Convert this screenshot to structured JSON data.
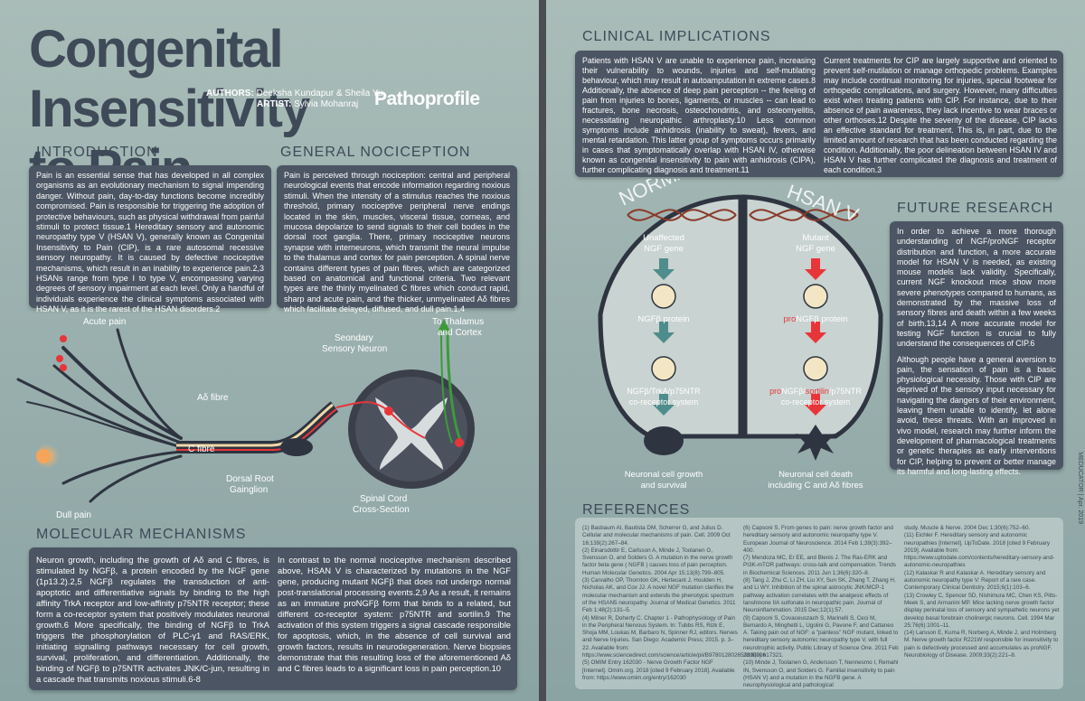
{
  "title_line1": "Congenital Insensitivity",
  "title_line2": "to Pain",
  "authors_label": "AUTHORS:",
  "authors": "Deeksha Kundapur & Sheila Yu",
  "artist_label": "ARTIST:",
  "artist": "Sylvia Mohanraj",
  "brand": "Pathoprofile",
  "introduction": {
    "heading": "INTRODUCTION",
    "text": "Pain is an essential sense that has developed in all complex organisms as an evolutionary mechanism to signal impending danger. Without pain, day-to-day functions become incredibly compromised. Pain is responsible for triggering the adoption of protective behaviours, such as physical withdrawal from painful stimuli to protect tissue.1 Hereditary sensory and autonomic neuropathy type V (HSAN V), generally known as Congenital Insensitivity to Pain (CIP), is a rare autosomal recessive sensory neuropathy. It is caused by defective nociceptive mechanisms, which result in an inability to experience pain.2,3 HSANs range from type I to type V, encompassing varying degrees of sensory impairment at each level. Only a handful of individuals experience the clinical symptoms associated with HSAN V, as it is the rarest of the HSAN disorders.2"
  },
  "nociception": {
    "heading": "GENERAL NOCICEPTION",
    "text": "Pain is perceived through nociception: central and peripheral neurological events that encode information regarding noxious stimuli. When the intensity of a stimulus reaches the noxious threshold, primary nociceptive peripheral nerve endings located in the skin, muscles, visceral tissue, corneas, and mucosa depolarize to send signals to their cell bodies in the dorsal root ganglia. There, primary nociceptive neurons synapse with interneurons, which transmit the neural impulse to the thalamus and cortex for pain perception. A spinal nerve contains different types of pain fibres, which are categorized based on anatomical and functional criteria. Two relevant types are the thinly myelinated C fibres which conduct rapid, sharp and acute pain, and the thicker, unmyelinated Aδ fibres which facilitate delayed, diffused, and dull pain.1,4"
  },
  "figure_left": {
    "acute_pain": "Acute pain",
    "dull_pain": "Dull pain",
    "a_delta": "Aδ fibre",
    "c_fibre": "C fibre",
    "drg_1": "Dorsal Root",
    "drg_2": "Gainglion",
    "secondary_1": "Seondary",
    "secondary_2": "Sensory Neuron",
    "thalamus_1": "To Thalamus",
    "thalamus_2": "and Cortex",
    "spinal_1": "Spinal Cord",
    "spinal_2": "Cross-Section"
  },
  "molecular": {
    "heading": "MOLECULAR MECHANISMS",
    "text1": "Neuron growth, including the growth of Aδ and C fibres, is stimulated by NGFβ, a protein encoded by the NGF gene (1p13.2).2,5 NGFβ regulates the transduction of anti-apoptotic and differentiative signals by binding to the high affinity TrkA receptor and low-affinity p75NTR receptor; these form a co-receptor system that positively modulates neuronal growth.6 More specifically, the binding of NGFβ to TrkA triggers the phosphorylation of PLC-γ1 and RAS/ERK, initiating signalling pathways necessary for cell growth, survival, proliferation, and differentiation. Additionally, the binding of NGFβ to p75NTR activates JNK/C-jun, resulting in a cascade that transmits noxious stimuli.6-8",
    "text2": "In contrast to the normal nociceptive mechanism described above, HSAN V is characterized by mutations in the NGF gene, producing mutant NGFβ that does not undergo normal post-translational processing events.2,9 As a result, it remains as an immature proNGFβ form that binds to a related, but different co-receptor system: p75NTR and sortilin.9 The activation of this system triggers a signal cascade responsible for apoptosis, which, in the absence of cell survival and growth factors, results in neurodegeneration. Nerve biopsies demonstrate that this resulting loss of the aforementioned Aδ and C fibres leads to a significant loss in pain perception.10"
  },
  "clinical": {
    "heading": "CLINICAL IMPLICATIONS",
    "text1": "Patients with HSAN V are unable to experience pain, increasing their vulnerability to wounds, injuries and self-mutilating behaviour, which may result in autoamputation in extreme cases.8 Additionally, the absence of deep pain perception -- the feeling of pain from injuries to bones, ligaments, or muscles -- can lead to fractures, bone necrosis, osteochondritis, and osteomyelitis, necessitating neuropathic arthroplasty.10 Less common symptoms include anhidrosis (inability to sweat), fevers, and mental retardation. This latter group of symptoms occurs primarily in cases that symptomatically overlap with HSAN IV, otherwise known as congenital insensitivity to pain with anhidrosis (CIPA), further complicating diagnosis and treatment.11",
    "text2": "Current treatments for CIP are largely supportive and oriented to prevent self-mutilation or manage orthopedic problems. Examples may include continual monitoring for injuries, special footwear for orthopedic complications, and surgery. However, many difficulties exist when treating patients with CIP. For instance, due to their absence of pain awareness, they lack incentive to wear braces or other orthoses.12 Despite the severity of the disease, CIP lacks an effective standard for treatment. This is, in part, due to the limited amount of research that has been conducted regarding the condition. Additionally, the poor delineation between HSAN IV and HSAN V has further complicated the diagnosis and treatment of each condition.3"
  },
  "figure_right": {
    "normal": "NORMAL",
    "hsan": "HSAN V",
    "unaffected_1": "Unaffected",
    "unaffected_2": "NGF gene",
    "mutant_1": "Mutant",
    "mutant_2": "NGF gene",
    "ngf_protein": "NGFβ protein",
    "pro_prefix": "pro",
    "pro_ngf_protein": "NGFβ protein",
    "receptor_left": "NGFβ/TrkA/p75NTR",
    "coreceptor": "co-receptor system",
    "receptor_right_pro": "pro",
    "receptor_right_ngf": "NGFβ/",
    "receptor_right_sort": "sortilin",
    "receptor_right_end": "/p75NTR",
    "growth_1": "Neuronal cell growth",
    "growth_2": "and survival",
    "death_1": "Neuronal cell death",
    "death_2": "including C and Aδ fibres"
  },
  "future": {
    "heading": "FUTURE RESEARCH",
    "text1": "In order to achieve a more thorough understanding of NGF/proNGF receptor distribution and function, a more accurate model for HSAN V is needed, as existing mouse models lack validity. Specifically, current NGF knockout mice show more severe phenotypes compared to humans, as demonstrated by the massive loss of sensory fibres and death within a few weeks of birth.13,14 A more accurate model for testing NGF function is crucial to fully understand the consequences of CIP.6",
    "text2": "Although people have a general aversion to pain, the sensation of pain is a basic physiological necessity. Those with CIP are deprived of the sensory input necessary for navigating the dangers of their environment, leaving them unable to identify, let alone avoid, these threats. With an improved in vivo model, research may further inform the development of pharmacological treatments or genetic therapies as early interventions for CIP, helping to prevent or better manage its harmful and long-lasting effects."
  },
  "references": {
    "heading": "REFERENCES",
    "col1": [
      "(1) Basbaum AI, Bautista DM, Scherrer G, and Julius D. Cellular and molecular mechanisms of pain. Cell. 2009 Oct 16;139(2):267–84.",
      "(2) Einarsdottir E, Carlsson A, Minde J, Toolanen G, Svensson O, and Solders G. A mutation in the nerve growth factor beta gene ( NGFB ) causes loss of pain perception. Human Molecular Genetics. 2004 Apr 15;13(8):799–805.",
      "(3) Carvalho OP, Thornton GK, Hertecant J, Houlden H, Nicholas AK, and Cox JJ. A novel NGF mutation clarifies the molecular mechanism and extends the phenotypic spectrum of the HSAN5 neuropathy. Journal of Medical Genetics. 2011 Feb 1;48(2):131–5.",
      "(4) Milner R, Doherty C. Chapter 1 - Pathophysiology of Pain in the Peripheral Nervous System. In: Tubbs RS, Rizk E, Shoja MM, Loukas M, Barbaro N, Spinner RJ, editors. Nerves and Nerve Injuries. San Diego: Academic Press; 2015. p. 3–22. Available from: https://www.sciencedirect.com/science/article/pii/B978012802653300006",
      "(5) OMIM Entry 162030 - Nerve Growth Factor NGF [Internet]. Omim.org. 2018 [cited 9 February 2018]. Available from: https://www.omim.org/entry/162030"
    ],
    "col2": [
      "(6) Capsoni S. From genes to pain: nerve growth factor and hereditary sensory and autonomic neuropathy type V. European Journal of Neuroscience. 2014 Feb 1;39(3):392–400.",
      "(7) Mendoza MC, Er EE, and Blenis J. The Ras-ERK and PI3K-mTOR pathways: cross-talk and compensation. Trends in Biochemical Sciences. 2011 Jun 1;36(6):320–8.",
      "(8) Tang J, Zhu C, Li ZH, Liu XY, Sun SK, Zhang T, Zhang H, and Li WY. Inhibition of the spinal astrocytic JNK/MCP-1 pathway activation correlates with the analgesic effects of tanshinone IIA sulfonate in neuropathic pain. Journal of Neuroinflammation. 2015 Dec;12(1):57.",
      "(9) Capsoni S, Covaceuszach S, Marinelli S, Ceci M, Bernardo A, Minghetti L, Ugolini G, Pavone F, and Cattaneo A. Taking pain out of NGF: a \"painless\" NGF mutant, linked to hereditary sensory autonomic neuropathy type V, with full neurotrophic activity. Public Library of Science One. 2011 Feb 28;6(2):e17321.",
      "(10) Minde J, Toolanen G, Andersson T, Nennesmo I, Remahl IN, Svensson O, and Solders G. Familial insensitivity to pain (HSAN V) and a mutation in the NGFB gene. A neurophysiological and pathological"
    ],
    "col3": [
      "study. Muscle & Nerve. 2004 Dec 1;30(6):752–60.",
      "(11) Eichler F. Hereditary sensory and autonomic neuropathies [Internet]. UpToDate. 2018 [cited 9 February 2019]. Available from: https://www.uptodate.com/contents/hereditary-sensory-and-autonomic-neuropathies",
      "(12) Kalaskar R and Kalaskar A. Hereditary sensory and autonomic neuropathy type V: Report of a rare case. Contemporary Clinical Dentistry. 2015;6(1):103–6.",
      "(13) Crowley C, Spencer SD, Nishimura MC, Chen KS, Pitts-Meek S, and Armanini MP. Mice lacking nerve growth factor display perinatal loss of sensory and sympathetic neurons yet develop basal forebrain cholinergic neurons. Cell. 1994 Mar 25;76(6):1001–11.",
      "(14) Larsson E, Kuma R, Norberg A, Minde J, and Holmberg M. Nerve growth factor R221W responsible for insensitivity to pain is defectively processed and accumulates as proNGF. Neurobiology of Disease. 2009;33(2):221–8."
    ]
  },
  "side_text": "MEDUCATOR | Apr. 2019",
  "colors": {
    "box": "#4b5563",
    "heading": "#3f4a58",
    "page": "#9fb3b1",
    "accent": "#e8353a"
  }
}
